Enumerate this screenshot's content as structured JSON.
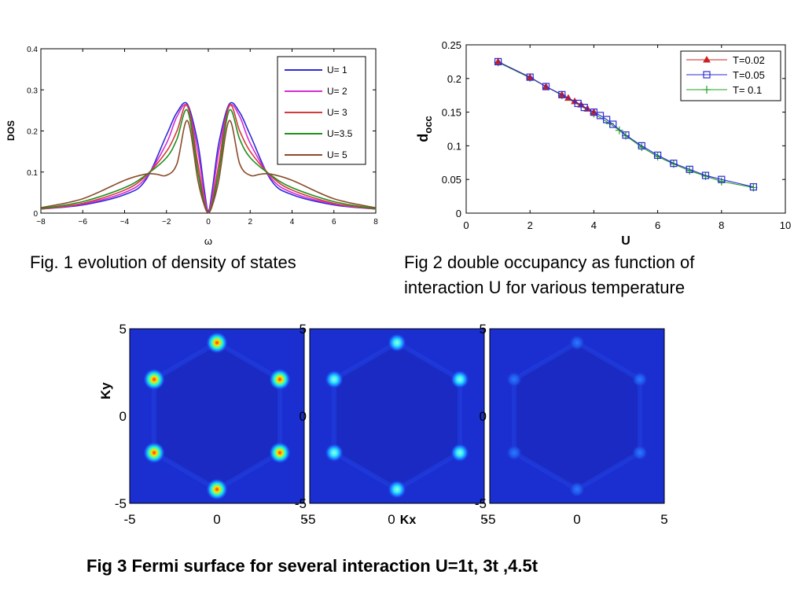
{
  "captions": {
    "fig1": "Fig. 1 evolution of density of states",
    "fig2_line1": "Fig 2 double occupancy as function of",
    "fig2_line2": "interaction U for various temperature",
    "fig3": "Fig 3 Fermi surface for several interaction U=1t, 3t ,4.5t"
  },
  "chart_data": [
    {
      "type": "line",
      "xlabel": "ω",
      "ylabel": "DOS",
      "xlim": [
        -8,
        8
      ],
      "ylim": [
        0,
        0.4
      ],
      "xticks": [
        "-8",
        "-6",
        "-4",
        "-2",
        "0",
        "2",
        "4",
        "6",
        "8"
      ],
      "yticks": [
        "0",
        "0.1",
        "0.2",
        "0.3",
        "0.4"
      ],
      "legend_position": "top-right",
      "grid": false,
      "series": [
        {
          "name": "U= 1",
          "color": "#2b2bd6",
          "x": [
            -8,
            -6,
            -4,
            -3,
            -2,
            -1.5,
            -1,
            -0.5,
            -0.2,
            0,
            0.2,
            0.5,
            1,
            1.5,
            2,
            3,
            4,
            6,
            8
          ],
          "y": [
            0.01,
            0.02,
            0.045,
            0.08,
            0.19,
            0.245,
            0.265,
            0.17,
            0.06,
            0.005,
            0.06,
            0.17,
            0.265,
            0.245,
            0.19,
            0.08,
            0.045,
            0.02,
            0.01
          ]
        },
        {
          "name": "U= 2",
          "color": "#d62bd6",
          "x": [
            -8,
            -6,
            -4,
            -3,
            -2,
            -1.5,
            -1,
            -0.5,
            -0.2,
            0,
            0.2,
            0.5,
            1,
            1.5,
            2,
            3,
            4,
            6,
            8
          ],
          "y": [
            0.01,
            0.022,
            0.05,
            0.085,
            0.17,
            0.235,
            0.26,
            0.15,
            0.045,
            0.003,
            0.045,
            0.15,
            0.26,
            0.235,
            0.17,
            0.085,
            0.05,
            0.022,
            0.01
          ]
        },
        {
          "name": "U= 3",
          "color": "#d63a3a",
          "x": [
            -8,
            -6,
            -4,
            -3,
            -2,
            -1.5,
            -1,
            -0.5,
            -0.2,
            0,
            0.2,
            0.5,
            1,
            1.5,
            2,
            3,
            4,
            6,
            8
          ],
          "y": [
            0.01,
            0.024,
            0.056,
            0.09,
            0.15,
            0.2,
            0.262,
            0.12,
            0.03,
            0.002,
            0.03,
            0.12,
            0.262,
            0.2,
            0.15,
            0.09,
            0.056,
            0.024,
            0.01
          ]
        },
        {
          "name": "U=3.5",
          "color": "#1f8f1f",
          "x": [
            -8,
            -6,
            -4,
            -3,
            -2,
            -1.5,
            -1,
            -0.5,
            -0.2,
            0,
            0.2,
            0.5,
            1,
            1.5,
            2,
            3,
            4,
            6,
            8
          ],
          "y": [
            0.011,
            0.028,
            0.062,
            0.092,
            0.135,
            0.18,
            0.25,
            0.1,
            0.025,
            0.002,
            0.025,
            0.1,
            0.25,
            0.18,
            0.135,
            0.092,
            0.062,
            0.028,
            0.011
          ]
        },
        {
          "name": "U= 5",
          "color": "#8b4a2a",
          "x": [
            -8,
            -6,
            -4,
            -3,
            -2.5,
            -2,
            -1.5,
            -1,
            -0.5,
            -0.2,
            0,
            0.2,
            0.5,
            1,
            1.5,
            2,
            2.5,
            3,
            4,
            6,
            8
          ],
          "y": [
            0.013,
            0.035,
            0.08,
            0.095,
            0.095,
            0.092,
            0.12,
            0.225,
            0.08,
            0.02,
            0.001,
            0.02,
            0.08,
            0.225,
            0.12,
            0.092,
            0.095,
            0.095,
            0.08,
            0.035,
            0.013
          ]
        }
      ]
    },
    {
      "type": "line",
      "xlabel": "U",
      "ylabel": "docc",
      "xlim": [
        0,
        10
      ],
      "ylim": [
        0,
        0.25
      ],
      "xticks": [
        "0",
        "2",
        "4",
        "6",
        "8",
        "10"
      ],
      "yticks": [
        "0",
        "0.05",
        "0.1",
        "0.15",
        "0.2",
        "0.25"
      ],
      "legend_position": "top-right",
      "grid": false,
      "series": [
        {
          "name": "T=0.02",
          "color": "#cc2020",
          "marker": "triangle",
          "x": [
            1,
            2,
            2.5,
            3,
            3.2,
            3.4,
            3.6,
            3.8,
            4
          ],
          "y": [
            0.225,
            0.202,
            0.188,
            0.176,
            0.171,
            0.166,
            0.161,
            0.155,
            0.15
          ]
        },
        {
          "name": "T=0.05",
          "color": "#2b2bd6",
          "marker": "square",
          "x": [
            1,
            2,
            2.5,
            3,
            3.5,
            3.7,
            4,
            4.2,
            4.4,
            4.6,
            5,
            5.5,
            6,
            6.5,
            7,
            7.5,
            8,
            9
          ],
          "y": [
            0.225,
            0.202,
            0.188,
            0.176,
            0.163,
            0.157,
            0.15,
            0.145,
            0.139,
            0.132,
            0.116,
            0.1,
            0.086,
            0.074,
            0.065,
            0.056,
            0.05,
            0.039
          ]
        },
        {
          "name": "T= 0.1",
          "color": "#22a022",
          "marker": "plus",
          "x": [
            1,
            2,
            3,
            4,
            4.5,
            4.8,
            5,
            5.5,
            6,
            6.5,
            7,
            7.5,
            8,
            9
          ],
          "y": [
            0.224,
            0.201,
            0.175,
            0.148,
            0.133,
            0.123,
            0.115,
            0.098,
            0.084,
            0.073,
            0.063,
            0.055,
            0.047,
            0.038
          ]
        }
      ]
    },
    {
      "type": "heatmap",
      "panels": [
        {
          "interaction": "U=1t",
          "peak_intensity": 1.0
        },
        {
          "interaction": "U=3t",
          "peak_intensity": 0.6
        },
        {
          "interaction": "U=4.5t",
          "peak_intensity": 0.22
        }
      ],
      "xlabel": "Kx",
      "ylabel": "Ky",
      "xlim": [
        -5,
        5
      ],
      "ylim": [
        -5,
        5
      ],
      "ticks": [
        "-5",
        "0",
        "5"
      ],
      "hot_spots_k": [
        [
          0,
          4.2
        ],
        [
          -3.6,
          2.1
        ],
        [
          3.6,
          2.1
        ],
        [
          -3.6,
          -2.1
        ],
        [
          3.6,
          -2.1
        ],
        [
          0,
          -4.2
        ]
      ]
    }
  ]
}
